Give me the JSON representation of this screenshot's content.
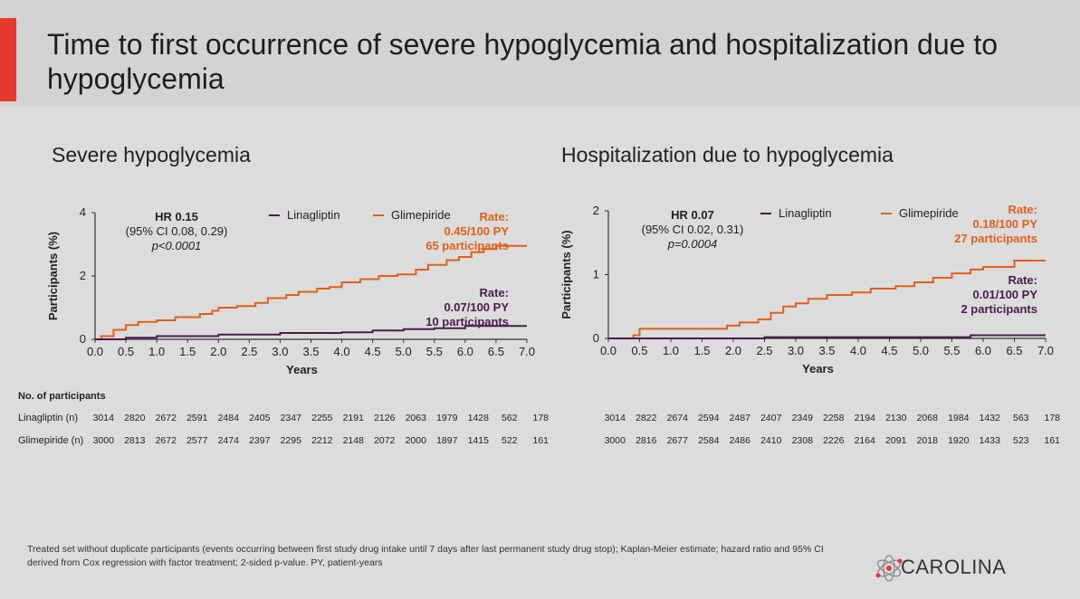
{
  "slide_title": "Time to first occurrence of severe hypoglycemia and hospitalization due to hypoglycemia",
  "colors": {
    "linagliptin": "#4a1c4e",
    "glimepiride": "#e0601c",
    "accent": "#e5392f"
  },
  "chart_data": [
    {
      "type": "line",
      "title": "Severe hypoglycemia",
      "xlabel": "Years",
      "ylabel": "Participants (%)",
      "xlim": [
        0,
        7
      ],
      "ylim": [
        0,
        4
      ],
      "x_ticks": [
        "0.0",
        "0.5",
        "1.0",
        "1.5",
        "2.0",
        "2.5",
        "3.0",
        "3.5",
        "4.0",
        "4.5",
        "5.0",
        "5.5",
        "6.0",
        "6.5",
        "7.0"
      ],
      "y_ticks": [
        "0",
        "2",
        "4"
      ],
      "legend": {
        "placement": "top",
        "linagliptin": "Linagliptin",
        "glimepiride": "Glimepiride"
      },
      "annotation": {
        "hr": "HR 0.15",
        "ci": "(95% CI 0.08, 0.29)",
        "p": "p<0.0001"
      },
      "rate_glimepiride": {
        "line1": "Rate:",
        "line2": "0.45/100 PY",
        "line3": "65 participants"
      },
      "rate_linagliptin": {
        "line1": "Rate:",
        "line2": "0.07/100 PY",
        "line3": "10 participants"
      },
      "series": [
        {
          "name": "Glimepiride",
          "x": [
            0,
            0.1,
            0.3,
            0.5,
            0.7,
            1.0,
            1.3,
            1.7,
            1.9,
            2.0,
            2.3,
            2.6,
            2.8,
            3.1,
            3.3,
            3.6,
            3.8,
            4.0,
            4.3,
            4.6,
            4.9,
            5.2,
            5.4,
            5.7,
            5.9,
            6.1,
            6.3,
            6.5,
            7.0
          ],
          "y": [
            0,
            0.1,
            0.3,
            0.45,
            0.55,
            0.6,
            0.7,
            0.8,
            0.9,
            1.0,
            1.05,
            1.15,
            1.3,
            1.4,
            1.5,
            1.6,
            1.65,
            1.8,
            1.9,
            2.0,
            2.05,
            2.2,
            2.35,
            2.5,
            2.6,
            2.75,
            2.85,
            2.95,
            2.95
          ]
        },
        {
          "name": "Linagliptin",
          "x": [
            0,
            0.5,
            1.0,
            2.0,
            3.0,
            4.0,
            4.5,
            5.0,
            5.5,
            6.0,
            7.0
          ],
          "y": [
            0,
            0.05,
            0.1,
            0.15,
            0.2,
            0.22,
            0.28,
            0.32,
            0.35,
            0.42,
            0.42
          ]
        }
      ]
    },
    {
      "type": "line",
      "title": "Hospitalization due to hypoglycemia",
      "xlabel": "Years",
      "ylabel": "Participants (%)",
      "xlim": [
        0,
        7
      ],
      "ylim": [
        0,
        2
      ],
      "x_ticks": [
        "0.0",
        "0.5",
        "1.0",
        "1.5",
        "2.0",
        "2.5",
        "3.0",
        "3.5",
        "4.0",
        "4.5",
        "5.0",
        "5.5",
        "6.0",
        "6.5",
        "7.0"
      ],
      "y_ticks": [
        "0",
        "1",
        "2"
      ],
      "legend": {
        "placement": "top",
        "linagliptin": "Linagliptin",
        "glimepiride": "Glimepiride"
      },
      "annotation": {
        "hr": "HR 0.07",
        "ci": "(95% CI 0.02, 0.31)",
        "p": "p=0.0004"
      },
      "rate_glimepiride": {
        "line1": "Rate:",
        "line2": "0.18/100 PY",
        "line3": "27 participants"
      },
      "rate_linagliptin": {
        "line1": "Rate:",
        "line2": "0.01/100 PY",
        "line3": "2 participants"
      },
      "series": [
        {
          "name": "Glimepiride",
          "x": [
            0,
            0.4,
            0.5,
            1.7,
            1.9,
            2.1,
            2.4,
            2.6,
            2.8,
            3.0,
            3.2,
            3.5,
            3.9,
            4.2,
            4.6,
            4.9,
            5.2,
            5.5,
            5.8,
            6.0,
            6.5,
            7.0
          ],
          "y": [
            0,
            0.05,
            0.15,
            0.15,
            0.2,
            0.25,
            0.3,
            0.4,
            0.5,
            0.55,
            0.62,
            0.68,
            0.72,
            0.78,
            0.82,
            0.88,
            0.95,
            1.02,
            1.08,
            1.12,
            1.22,
            1.22
          ]
        },
        {
          "name": "Linagliptin",
          "x": [
            0,
            2.5,
            5.8,
            7.0
          ],
          "y": [
            0,
            0.02,
            0.05,
            0.05
          ]
        }
      ]
    }
  ],
  "table": {
    "header": "No. of participants",
    "linagliptin_label": "Linagliptin (n)",
    "glimepiride_label": "Glimepiride (n)",
    "left_linagliptin": [
      "3014",
      "2820",
      "2672",
      "2591",
      "2484",
      "2405",
      "2347",
      "2255",
      "2191",
      "2126",
      "2063",
      "1979",
      "1428",
      "562",
      "178"
    ],
    "left_glimepiride": [
      "3000",
      "2813",
      "2672",
      "2577",
      "2474",
      "2397",
      "2295",
      "2212",
      "2148",
      "2072",
      "2000",
      "1897",
      "1415",
      "522",
      "161"
    ],
    "right_linagliptin": [
      "3014",
      "2822",
      "2674",
      "2594",
      "2487",
      "2407",
      "2349",
      "2258",
      "2194",
      "2130",
      "2068",
      "1984",
      "1432",
      "563",
      "178"
    ],
    "right_glimepiride": [
      "3000",
      "2816",
      "2677",
      "2584",
      "2486",
      "2410",
      "2308",
      "2226",
      "2164",
      "2091",
      "2018",
      "1920",
      "1433",
      "523",
      "161"
    ]
  },
  "footnote": "Treated set without duplicate participants (events occurring between first study drug intake until 7 days after last permanent study drug stop); Kaplan-Meier estimate; hazard ratio and 95% CI derived from Cox regression with factor treatment; 2-sided p-value. PY, patient-years",
  "logo_text": "CAROLINA"
}
